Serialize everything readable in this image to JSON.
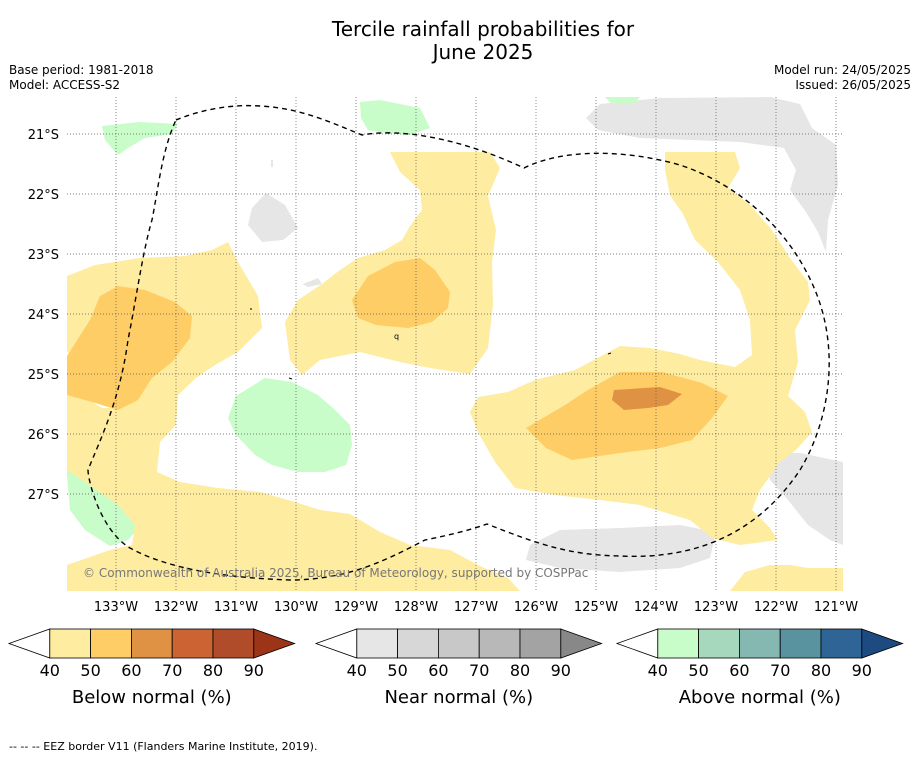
{
  "title_line1": "Tercile rainfall probabilities for",
  "title_line2": "June 2025",
  "meta": {
    "base_period": "Base period: 1981-2018",
    "model": "Model: ACCESS-S2",
    "model_run": "Model run: 24/05/2025",
    "issued": "Issued: 26/05/2025"
  },
  "map": {
    "lat_labels": [
      "21°S",
      "22°S",
      "23°S",
      "24°S",
      "25°S",
      "26°S",
      "27°S"
    ],
    "lon_labels": [
      "133°W",
      "132°W",
      "131°W",
      "130°W",
      "129°W",
      "128°W",
      "127°W",
      "126°W",
      "125°W",
      "124°W",
      "123°W",
      "122°W",
      "121°W"
    ],
    "copyright": "© Commonwealth of Australia 2025, Bureau of Meteorology, supported by COSPPac",
    "small_labels": [
      "q"
    ]
  },
  "colorbars": [
    {
      "name": "below",
      "title": "Below normal (%)",
      "ticks": [
        "40",
        "50",
        "60",
        "70",
        "80",
        "90"
      ],
      "colors": [
        "#ffffff",
        "#feeca0",
        "#fecd66",
        "#e09244",
        "#cc6332",
        "#b04c2a",
        "#9c3418"
      ]
    },
    {
      "name": "near",
      "title": "Near normal (%)",
      "ticks": [
        "40",
        "50",
        "60",
        "70",
        "80",
        "90"
      ],
      "colors": [
        "#ffffff",
        "#e6e6e6",
        "#d7d7d7",
        "#c8c8c8",
        "#b8b8b8",
        "#a3a3a3",
        "#888888"
      ]
    },
    {
      "name": "above",
      "title": "Above normal (%)",
      "ticks": [
        "40",
        "50",
        "60",
        "70",
        "80",
        "90"
      ],
      "colors": [
        "#ffffff",
        "#c8fcc8",
        "#a5d8bc",
        "#86b8b2",
        "#5a93a0",
        "#2f6496",
        "#1d4a80"
      ]
    }
  ],
  "footer": "--  --  -- EEZ border V11 (Flanders Marine Institute, 2019)."
}
